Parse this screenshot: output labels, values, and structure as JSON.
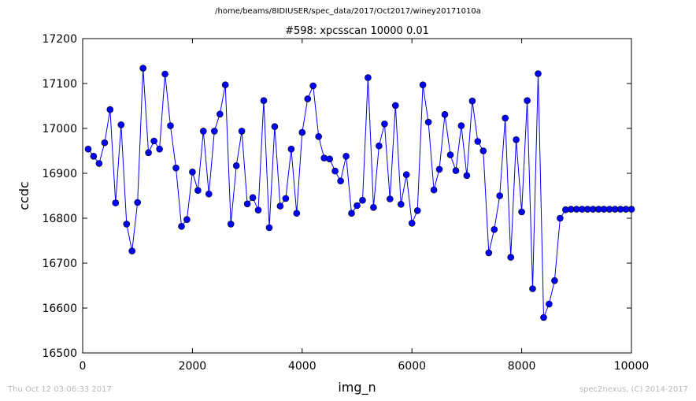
{
  "suptitle": "/home/beams/8IDIUSER/spec_data/2017/Oct2017/winey20171010a",
  "footer": {
    "timestamp": "Thu Oct 12 03:06:33 2017",
    "credit": "spec2nexus, (C) 2014-2017"
  },
  "chart_data": {
    "type": "line",
    "title": "#598: xpcsscan 10000 0.01",
    "xlabel": "img_n",
    "ylabel": "ccdc",
    "xlim": [
      0,
      10000
    ],
    "ylim": [
      16500,
      17200
    ],
    "xticks": [
      0,
      2000,
      4000,
      6000,
      8000,
      10000
    ],
    "yticks": [
      16500,
      16600,
      16700,
      16800,
      16900,
      17000,
      17100,
      17200
    ],
    "line_color": "#0000ff",
    "marker": "circle",
    "grid": false,
    "x": [
      100,
      200,
      300,
      400,
      500,
      600,
      700,
      800,
      900,
      1000,
      1100,
      1200,
      1300,
      1400,
      1500,
      1600,
      1700,
      1800,
      1900,
      2000,
      2100,
      2200,
      2300,
      2400,
      2500,
      2600,
      2700,
      2800,
      2900,
      3000,
      3100,
      3200,
      3300,
      3400,
      3500,
      3600,
      3700,
      3800,
      3900,
      4000,
      4100,
      4200,
      4300,
      4400,
      4500,
      4600,
      4700,
      4800,
      4900,
      5000,
      5100,
      5200,
      5300,
      5400,
      5500,
      5600,
      5700,
      5800,
      5900,
      6000,
      6100,
      6200,
      6300,
      6400,
      6500,
      6600,
      6700,
      6800,
      6900,
      7000,
      7100,
      7200,
      7300,
      7400,
      7500,
      7600,
      7700,
      7800,
      7900,
      8000,
      8100,
      8200,
      8300,
      8400,
      8500,
      8600,
      8700,
      8800,
      8900,
      9000,
      9100,
      9200,
      9300,
      9400,
      9500,
      9600,
      9700,
      9800,
      9900,
      10000
    ],
    "y": [
      16954,
      16938,
      16922,
      16968,
      17042,
      16834,
      17008,
      16787,
      16727,
      16835,
      17134,
      16946,
      16972,
      16954,
      17121,
      17006,
      16912,
      16782,
      16797,
      16903,
      16862,
      16994,
      16854,
      16994,
      17032,
      17097,
      16787,
      16917,
      16994,
      16832,
      16846,
      16818,
      17062,
      16779,
      17004,
      16827,
      16844,
      16954,
      16811,
      16991,
      17066,
      17095,
      16982,
      16934,
      16932,
      16905,
      16883,
      16938,
      16811,
      16828,
      16840,
      17113,
      16824,
      16961,
      17010,
      16843,
      17051,
      16831,
      16897,
      16789,
      16817,
      17097,
      17014,
      16863,
      16909,
      17031,
      16941,
      16906,
      17006,
      16895,
      17061,
      16971,
      16950,
      16723,
      16775,
      16850,
      17023,
      16713,
      16975,
      16814,
      17062,
      16643,
      17122,
      16579,
      16609,
      16661,
      16800,
      16819,
      16820,
      16820,
      16820,
      16820,
      16820,
      16820,
      16820,
      16820,
      16820,
      16820,
      16820,
      16820
    ]
  }
}
